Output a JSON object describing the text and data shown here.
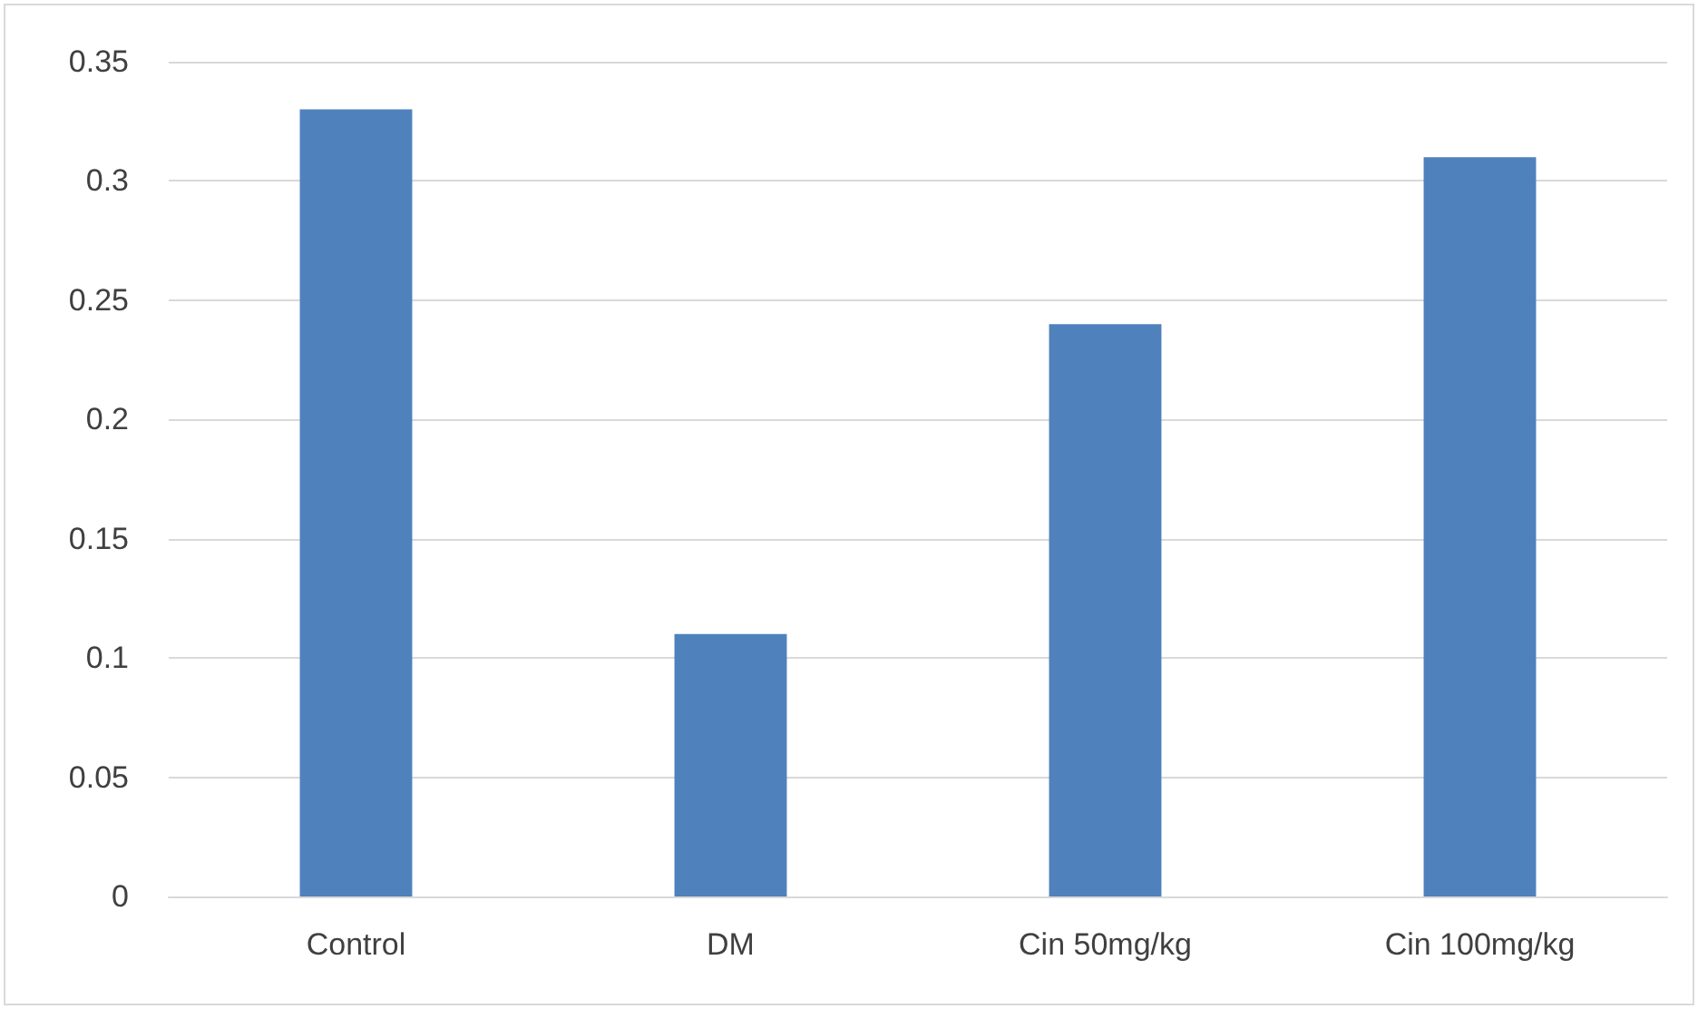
{
  "chart_data": {
    "type": "bar",
    "categories": [
      "Control",
      "DM",
      "Cin 50mg/kg",
      "Cin 100mg/kg"
    ],
    "values": [
      0.33,
      0.11,
      0.24,
      0.31
    ],
    "color": "#4f81bd",
    "ylim": [
      0,
      0.35
    ],
    "yticks": [
      0,
      0.05,
      0.1,
      0.15,
      0.2,
      0.25,
      0.3,
      0.35
    ],
    "grid": "y"
  }
}
